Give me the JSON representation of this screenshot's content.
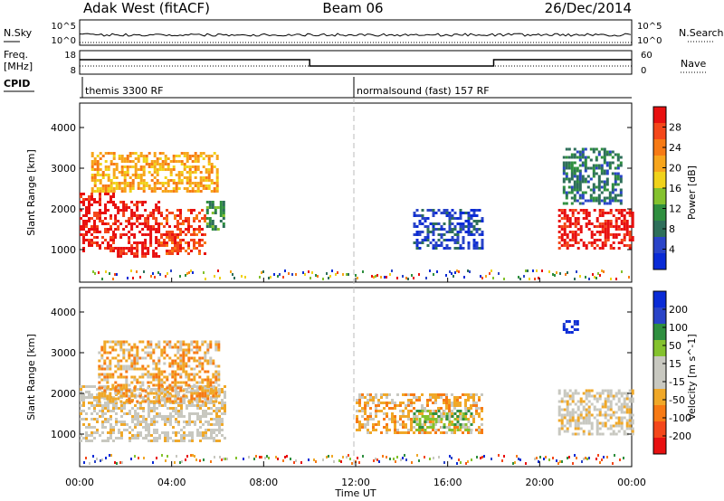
{
  "header": {
    "station": "Adak West (fitACF)",
    "beam": "Beam 06",
    "date": "26/Dec/2014"
  },
  "top_panels": {
    "nsky_label": "N.Sky",
    "nsky_ticks": [
      "10^5",
      "10^0"
    ],
    "nsearch_label": "N.Search",
    "nsearch_ticks": [
      "10^5",
      "10^0"
    ],
    "freq_label": "Freq.",
    "freq_unit": "[MHz]",
    "freq_ticks": [
      "18",
      "8"
    ],
    "nave_label": "Nave",
    "nave_ticks": [
      "60",
      "0"
    ],
    "cpid_label": "CPID",
    "cpid_segments": [
      {
        "text": "themis 3300 RF",
        "start_hour": 0
      },
      {
        "text": "normalsound (fast) 157 RF",
        "start_hour": 12
      }
    ]
  },
  "colors": {
    "power": [
      "#0a2bd6",
      "#2a44c8",
      "#2e6f5a",
      "#2f8f3f",
      "#84c22e",
      "#f0d21a",
      "#f7a51c",
      "#f77a14",
      "#f4471a",
      "#e81010"
    ],
    "velocity": [
      "#e81010",
      "#f4471a",
      "#f77a14",
      "#f0a828",
      "#c8c8c0",
      "#c8c8c0",
      "#84c22e",
      "#2f8f3f",
      "#2a44c8",
      "#0a2bd6"
    ]
  },
  "chart_data": [
    {
      "type": "heatmap",
      "panel": "power",
      "ylabel": "Slant Range [km]",
      "yticks": [
        1000,
        2000,
        3000,
        4000
      ],
      "ylim": [
        200,
        4600
      ],
      "xlim": [
        0,
        24
      ],
      "colorbar_label": "Power [dB]",
      "colorbar_ticks": [
        "4",
        "8",
        "12",
        "16",
        "20",
        "24",
        "28"
      ],
      "regions": [
        {
          "t0": 0.0,
          "t1": 1.5,
          "r0": 950,
          "r1": 2400,
          "level": 9
        },
        {
          "t0": 1.5,
          "t1": 3.5,
          "r0": 850,
          "r1": 2200,
          "level": 9
        },
        {
          "t0": 3.5,
          "t1": 5.5,
          "r0": 900,
          "r1": 2000,
          "level": 8
        },
        {
          "t0": 5.5,
          "t1": 6.3,
          "r0": 1500,
          "r1": 2200,
          "level": 3
        },
        {
          "t0": 14.5,
          "t1": 17.5,
          "r0": 1050,
          "r1": 2000,
          "level": 1
        },
        {
          "t0": 20.8,
          "t1": 24.0,
          "r0": 1000,
          "r1": 2000,
          "level": 9
        },
        {
          "t0": 0.5,
          "t1": 6.0,
          "r0": 2400,
          "r1": 3400,
          "level": 6
        },
        {
          "t0": 21.0,
          "t1": 23.5,
          "r0": 2100,
          "r1": 3500,
          "level": 2
        }
      ]
    },
    {
      "type": "heatmap",
      "panel": "velocity",
      "ylabel": "Slant Range [km]",
      "xlabel": "Time UT",
      "yticks": [
        1000,
        2000,
        3000,
        4000
      ],
      "ylim": [
        200,
        4600
      ],
      "xlim": [
        0,
        24
      ],
      "xticks": [
        "00:00",
        "04:00",
        "08:00",
        "12:00",
        "16:00",
        "20:00",
        "00:00"
      ],
      "colorbar_label": "Velocity [m s^-1]",
      "colorbar_ticks": [
        "-200",
        "-100",
        "-50",
        "-15",
        "15",
        "50",
        "100",
        "200"
      ],
      "regions": [
        {
          "t0": 0.0,
          "t1": 6.3,
          "r0": 800,
          "r1": 2200,
          "level": 4
        },
        {
          "t0": 0.8,
          "t1": 6.0,
          "r0": 1800,
          "r1": 3300,
          "level": 3
        },
        {
          "t0": 12.0,
          "t1": 17.5,
          "r0": 1050,
          "r1": 2000,
          "level": 3
        },
        {
          "t0": 14.5,
          "t1": 17.0,
          "r0": 1100,
          "r1": 1600,
          "level": 6
        },
        {
          "t0": 20.8,
          "t1": 24.0,
          "r0": 1000,
          "r1": 2100,
          "level": 4
        },
        {
          "t0": 21.0,
          "t1": 21.6,
          "r0": 3500,
          "r1": 3800,
          "level": 9
        }
      ]
    }
  ]
}
